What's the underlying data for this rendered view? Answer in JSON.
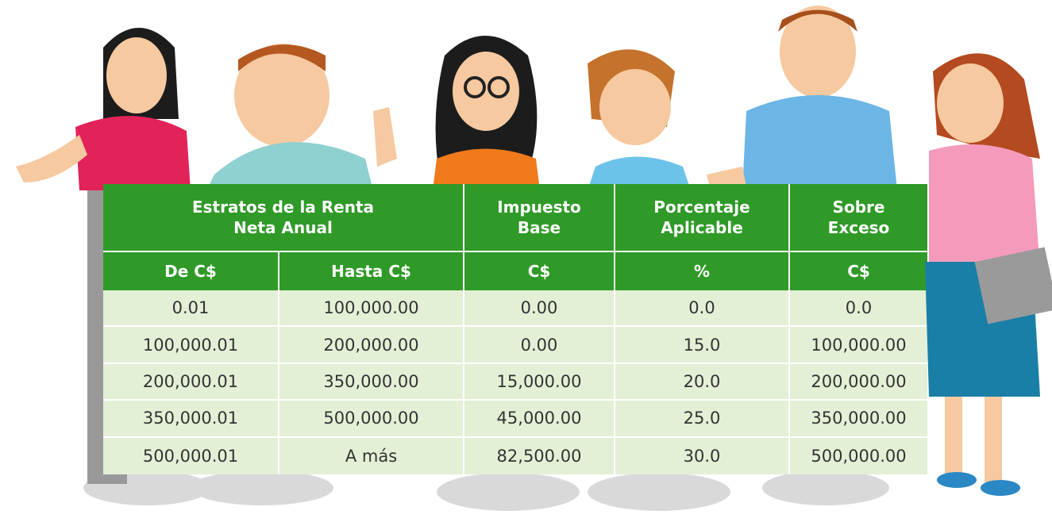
{
  "table": {
    "header": {
      "groups": [
        [
          "Estratos de la Renta",
          "Neta Anual"
        ],
        [
          "Impuesto",
          "Base"
        ],
        [
          "Porcentaje",
          "Aplicable"
        ],
        [
          "Sobre",
          "Exceso"
        ]
      ],
      "columns": [
        "De C$",
        "Hasta C$",
        "C$",
        "%",
        "C$"
      ]
    },
    "rows": [
      [
        "0.01",
        "100,000.00",
        "0.00",
        "0.0",
        "0.0"
      ],
      [
        "100,000.01",
        "200,000.00",
        "0.00",
        "15.0",
        "100,000.00"
      ],
      [
        "200,000.01",
        "350,000.00",
        "15,000.00",
        "20.0",
        "200,000.00"
      ],
      [
        "350,000.01",
        "500,000.00",
        "45,000.00",
        "25.0",
        "350,000.00"
      ],
      [
        "500,000.01",
        "A más",
        "82,500.00",
        "30.0",
        "500,000.00"
      ]
    ]
  }
}
